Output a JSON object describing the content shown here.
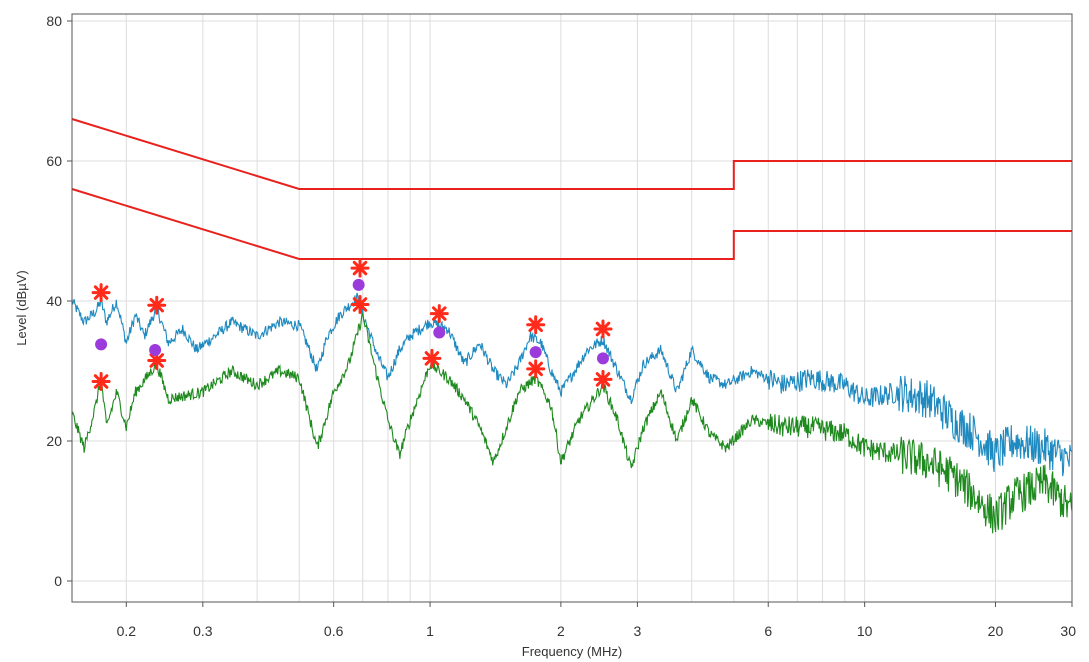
{
  "chart_data": {
    "type": "line",
    "title": "",
    "xlabel": "Frequency (MHz)",
    "ylabel": "Level (dBµV)",
    "x_scale": "log",
    "xlim": [
      0.15,
      30
    ],
    "ylim": [
      -3,
      81
    ],
    "grid": true,
    "x_ticks": [
      {
        "value": 0.2,
        "label": "0.2"
      },
      {
        "value": 0.3,
        "label": "0.3"
      },
      {
        "value": 0.6,
        "label": "0.6"
      },
      {
        "value": 1,
        "label": "1"
      },
      {
        "value": 2,
        "label": "2"
      },
      {
        "value": 3,
        "label": "3"
      },
      {
        "value": 6,
        "label": "6"
      },
      {
        "value": 10,
        "label": "10"
      },
      {
        "value": 20,
        "label": "20"
      },
      {
        "value": 30,
        "label": "30"
      }
    ],
    "x_minor_gridlines": [
      0.4,
      0.5,
      0.7,
      0.8,
      0.9,
      4,
      5,
      7,
      8,
      9
    ],
    "y_ticks": [
      {
        "value": 0,
        "label": "0"
      },
      {
        "value": 20,
        "label": "20"
      },
      {
        "value": 40,
        "label": "40"
      },
      {
        "value": 60,
        "label": "60"
      },
      {
        "value": 80,
        "label": "80"
      }
    ],
    "colors": {
      "limit": "#e8211d",
      "peak": "#1f8ac0",
      "average": "#1e8a1e",
      "marker_star": "#ff2a1a",
      "marker_dot": "#9b3bdc",
      "grid": "#dcdcdc",
      "axis": "#555555"
    },
    "series": [
      {
        "role": "limit-upper",
        "points": [
          [
            0.15,
            66
          ],
          [
            0.5,
            56
          ],
          [
            5,
            56
          ],
          [
            5,
            60
          ],
          [
            30,
            60
          ]
        ]
      },
      {
        "role": "limit-lower",
        "points": [
          [
            0.15,
            56
          ],
          [
            0.5,
            46
          ],
          [
            5,
            46
          ],
          [
            5,
            50
          ],
          [
            30,
            50
          ]
        ]
      },
      {
        "role": "peak-trace",
        "points": [
          [
            0.15,
            40
          ],
          [
            0.16,
            37
          ],
          [
            0.17,
            38.5
          ],
          [
            0.175,
            40
          ],
          [
            0.18,
            37
          ],
          [
            0.19,
            40
          ],
          [
            0.2,
            34
          ],
          [
            0.21,
            38
          ],
          [
            0.22,
            35
          ],
          [
            0.235,
            39
          ],
          [
            0.25,
            34
          ],
          [
            0.27,
            36
          ],
          [
            0.29,
            33
          ],
          [
            0.32,
            35
          ],
          [
            0.35,
            37
          ],
          [
            0.4,
            35
          ],
          [
            0.45,
            37
          ],
          [
            0.5,
            36.5
          ],
          [
            0.52,
            34
          ],
          [
            0.55,
            30
          ],
          [
            0.58,
            35
          ],
          [
            0.62,
            38
          ],
          [
            0.68,
            40.5
          ],
          [
            0.72,
            36
          ],
          [
            0.76,
            32
          ],
          [
            0.8,
            29
          ],
          [
            0.85,
            33
          ],
          [
            0.9,
            35
          ],
          [
            1.0,
            37
          ],
          [
            1.1,
            36
          ],
          [
            1.2,
            31
          ],
          [
            1.3,
            34
          ],
          [
            1.4,
            30
          ],
          [
            1.5,
            28
          ],
          [
            1.6,
            31
          ],
          [
            1.7,
            35
          ],
          [
            1.8,
            34
          ],
          [
            1.9,
            30
          ],
          [
            2.0,
            27
          ],
          [
            2.1,
            29
          ],
          [
            2.3,
            33
          ],
          [
            2.5,
            34.5
          ],
          [
            2.7,
            30
          ],
          [
            2.9,
            26
          ],
          [
            3.1,
            31
          ],
          [
            3.4,
            33
          ],
          [
            3.7,
            27
          ],
          [
            4.0,
            33
          ],
          [
            4.4,
            29
          ],
          [
            4.8,
            28
          ],
          [
            5.5,
            30
          ],
          [
            6.5,
            28
          ],
          [
            7.5,
            29
          ],
          [
            9,
            28
          ],
          [
            10,
            26
          ],
          [
            12,
            27
          ],
          [
            14,
            26
          ],
          [
            16,
            23
          ],
          [
            18,
            21
          ],
          [
            20,
            18
          ],
          [
            22,
            20
          ],
          [
            26,
            19
          ],
          [
            30,
            17
          ]
        ]
      },
      {
        "role": "average-trace",
        "points": [
          [
            0.15,
            24
          ],
          [
            0.16,
            19
          ],
          [
            0.17,
            25
          ],
          [
            0.175,
            29
          ],
          [
            0.18,
            22
          ],
          [
            0.19,
            27
          ],
          [
            0.2,
            22
          ],
          [
            0.21,
            27
          ],
          [
            0.235,
            31
          ],
          [
            0.25,
            26
          ],
          [
            0.3,
            27
          ],
          [
            0.35,
            30
          ],
          [
            0.4,
            28
          ],
          [
            0.45,
            30
          ],
          [
            0.5,
            29
          ],
          [
            0.55,
            19
          ],
          [
            0.6,
            27
          ],
          [
            0.65,
            31
          ],
          [
            0.7,
            38
          ],
          [
            0.75,
            30
          ],
          [
            0.8,
            23
          ],
          [
            0.85,
            18
          ],
          [
            0.9,
            23
          ],
          [
            1.0,
            31
          ],
          [
            1.1,
            29
          ],
          [
            1.2,
            26
          ],
          [
            1.3,
            22
          ],
          [
            1.4,
            17
          ],
          [
            1.5,
            22
          ],
          [
            1.6,
            27
          ],
          [
            1.75,
            29
          ],
          [
            1.9,
            25
          ],
          [
            2.0,
            17
          ],
          [
            2.2,
            23
          ],
          [
            2.5,
            28
          ],
          [
            2.7,
            23
          ],
          [
            2.9,
            16
          ],
          [
            3.1,
            22
          ],
          [
            3.4,
            27
          ],
          [
            3.7,
            20
          ],
          [
            4.0,
            26
          ],
          [
            4.4,
            21
          ],
          [
            4.8,
            19
          ],
          [
            5.5,
            23
          ],
          [
            6.5,
            22
          ],
          [
            7.5,
            22
          ],
          [
            9,
            21
          ],
          [
            10,
            19
          ],
          [
            12,
            18
          ],
          [
            14,
            17
          ],
          [
            16,
            15
          ],
          [
            18,
            12
          ],
          [
            20,
            9
          ],
          [
            22,
            12
          ],
          [
            26,
            14
          ],
          [
            30,
            10
          ]
        ]
      }
    ],
    "markers": [
      {
        "shape": "star",
        "freq": 0.175,
        "level": 41.2
      },
      {
        "shape": "star",
        "freq": 0.175,
        "level": 28.5
      },
      {
        "shape": "dot",
        "freq": 0.175,
        "level": 33.8
      },
      {
        "shape": "star",
        "freq": 0.235,
        "level": 39.4
      },
      {
        "shape": "star",
        "freq": 0.235,
        "level": 31.5
      },
      {
        "shape": "dot",
        "freq": 0.233,
        "level": 33.0
      },
      {
        "shape": "star",
        "freq": 0.69,
        "level": 44.7
      },
      {
        "shape": "star",
        "freq": 0.69,
        "level": 39.5
      },
      {
        "shape": "dot",
        "freq": 0.685,
        "level": 42.3
      },
      {
        "shape": "star",
        "freq": 1.05,
        "level": 38.2
      },
      {
        "shape": "star",
        "freq": 1.01,
        "level": 31.8
      },
      {
        "shape": "dot",
        "freq": 1.05,
        "level": 35.5
      },
      {
        "shape": "star",
        "freq": 1.75,
        "level": 36.6
      },
      {
        "shape": "star",
        "freq": 1.75,
        "level": 30.3
      },
      {
        "shape": "dot",
        "freq": 1.75,
        "level": 32.7
      },
      {
        "shape": "star",
        "freq": 2.5,
        "level": 36.0
      },
      {
        "shape": "star",
        "freq": 2.5,
        "level": 28.8
      },
      {
        "shape": "dot",
        "freq": 2.5,
        "level": 31.8
      }
    ]
  }
}
